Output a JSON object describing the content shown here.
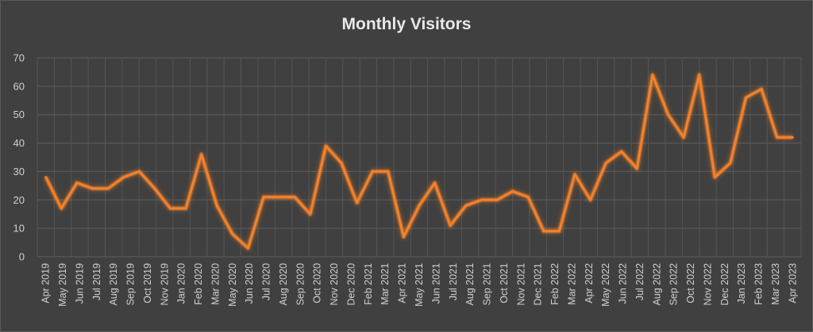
{
  "chart_data": {
    "type": "line",
    "title": "Monthly Visitors",
    "xlabel": "",
    "ylabel": "",
    "ylim": [
      0,
      70
    ],
    "yticks": [
      0,
      10,
      20,
      30,
      40,
      50,
      60,
      70
    ],
    "grid": true,
    "legend": "none",
    "line_color": "#f5822a",
    "background_color": "#404040",
    "categories": [
      "Apr 2019",
      "May 2019",
      "Jun 2019",
      "Jul 2019",
      "Aug 2019",
      "Sep 2019",
      "Oct 2019",
      "Nov 2019",
      "Dec 2019",
      "Jan 2020",
      "Feb 2020",
      "Mar 2020",
      "Apr 2020",
      "May 2020",
      "Jun 2020",
      "Jul 2020",
      "Aug 2020",
      "Sep 2020",
      "Oct 2020",
      "Nov 2020",
      "Dec 2020",
      "Jan 2021",
      "Feb 2021",
      "Mar 2021",
      "Apr 2021",
      "May 2021",
      "Jun 2021",
      "Jul 2021",
      "Aug 2021",
      "Sep 2021",
      "Oct 2021",
      "Nov 2021",
      "Dec 2021",
      "Jan 2022",
      "Feb 2022",
      "Mar 2022",
      "Apr 2022",
      "May 2022",
      "Jun 2022",
      "Jul 2022",
      "Aug 2022",
      "Sep 2022",
      "Oct 2022",
      "Nov 2022",
      "Dec 2022",
      "Jan 2023",
      "Feb 2023",
      "Mar 2023",
      "Apr 2023"
    ],
    "tick_labels": [
      "Apr 2019",
      "May 2019",
      "Jun 2019",
      "Jul 2019",
      "Aug 2019",
      "Sep 2019",
      "Oct 2019",
      "Nov 2019",
      "Jan 2020",
      "Feb 2020",
      "Mar 2020",
      "May 2020",
      "Jun 2020",
      "Jul 2020",
      "Aug 2020",
      "Sep 2020",
      "Oct 2020",
      "Nov 2020",
      "Dec 2020",
      "Feb 2021",
      "Mar 2021",
      "Apr 2021",
      "May 2021",
      "Jun 2021",
      "Jul 2021",
      "Aug 2021",
      "Sep 2021",
      "Oct 2021",
      "Nov 2021",
      "Dec 2021",
      "Feb 2022",
      "Mar 2022",
      "Apr 2022",
      "May 2022",
      "Jun 2022",
      "Jul 2022",
      "Aug 2022",
      "Sep 2022",
      "Oct 2022",
      "Nov 2022",
      "Dec 2022",
      "Jan 2023",
      "Feb 2023",
      "Mar 2023",
      "Apr 2023"
    ],
    "series": [
      {
        "values": [
          28,
          17,
          26,
          24,
          24,
          28,
          30,
          24,
          17,
          17,
          36,
          18,
          8,
          3,
          21,
          21,
          21,
          15,
          39,
          33,
          19,
          30,
          30,
          7,
          18,
          26,
          11,
          18,
          20,
          20,
          23,
          21,
          9,
          9,
          29,
          20,
          33,
          37,
          31,
          64,
          50,
          42,
          64,
          28,
          33,
          56,
          59,
          42,
          42
        ]
      }
    ]
  }
}
